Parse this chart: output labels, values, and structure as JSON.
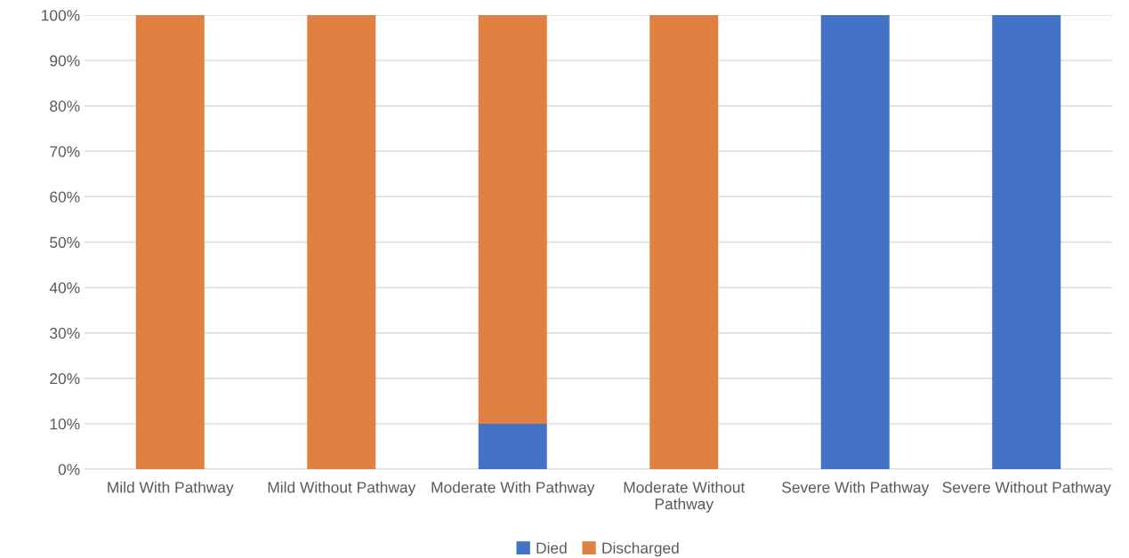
{
  "chart_data": {
    "type": "bar",
    "stacked": true,
    "categories": [
      "Mild With Pathway",
      "Mild Without Pathway",
      "Moderate With Pathway",
      "Moderate Without\nPathway",
      "Severe With Pathway",
      "Severe Without Pathway"
    ],
    "series": [
      {
        "name": "Died",
        "color": "#4472c4",
        "values": [
          0,
          0,
          10,
          0,
          100,
          100
        ]
      },
      {
        "name": "Discharged",
        "color": "#e08142",
        "values": [
          100,
          100,
          90,
          100,
          0,
          0
        ]
      }
    ],
    "ylim": [
      0,
      100
    ],
    "yticks": [
      {
        "value": 0,
        "label": "0%"
      },
      {
        "value": 10,
        "label": "10%"
      },
      {
        "value": 20,
        "label": "20%"
      },
      {
        "value": 30,
        "label": "30%"
      },
      {
        "value": 40,
        "label": "40%"
      },
      {
        "value": 50,
        "label": "50%"
      },
      {
        "value": 60,
        "label": "60%"
      },
      {
        "value": 70,
        "label": "70%"
      },
      {
        "value": 80,
        "label": "80%"
      },
      {
        "value": 90,
        "label": "90%"
      },
      {
        "value": 100,
        "label": "100%"
      }
    ],
    "grid": "y",
    "legend": "bottom"
  }
}
